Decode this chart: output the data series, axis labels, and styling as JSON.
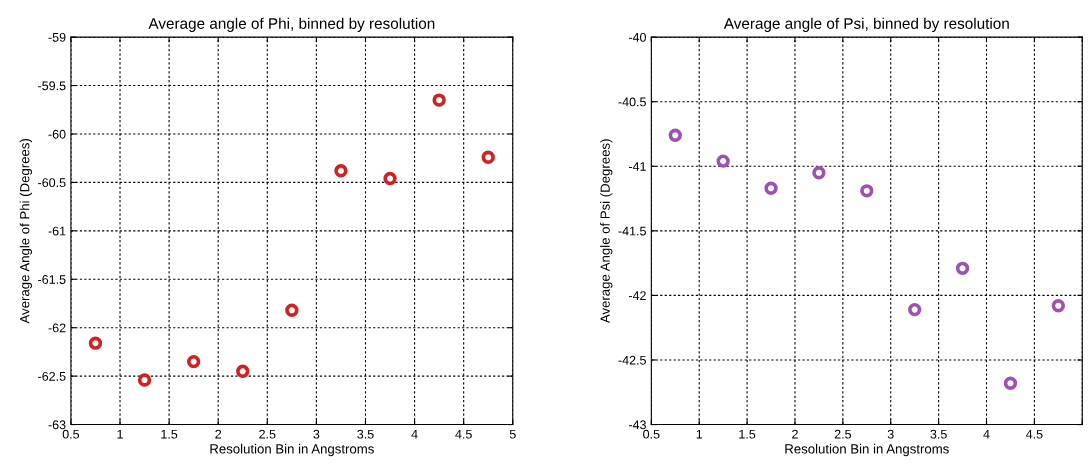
{
  "chart_data": [
    {
      "type": "scatter",
      "title": "Average angle of Phi, binned by resolution",
      "xlabel": "Resolution Bin in Angstroms",
      "ylabel": "Average Angle of Phi (Degrees)",
      "x": [
        0.75,
        1.25,
        1.75,
        2.25,
        2.75,
        3.25,
        3.75,
        4.25,
        4.75
      ],
      "series": [
        {
          "color": "#d42020",
          "values": [
            -62.16,
            -62.54,
            -62.35,
            -62.45,
            -61.82,
            -60.38,
            -60.46,
            -59.65,
            -60.24
          ]
        }
      ],
      "xlim": [
        0.5,
        5
      ],
      "xticks": [
        0.5,
        1,
        1.5,
        2,
        2.5,
        3,
        3.5,
        4,
        4.5,
        5
      ],
      "ylim": [
        -63,
        -59
      ],
      "yticks": [
        -63,
        -62.5,
        -62,
        -61.5,
        -61,
        -60.5,
        -60,
        -59.5,
        -59
      ],
      "grid": true,
      "marker": "circle"
    },
    {
      "type": "scatter",
      "title": "Average angle of Psi, binned by resolution",
      "xlabel": "Resolution Bin in Angstroms",
      "ylabel": "Average Angle of Psi (Degrees)",
      "x": [
        0.75,
        1.25,
        1.75,
        2.25,
        2.75,
        3.25,
        3.75,
        4.25,
        4.75
      ],
      "series": [
        {
          "color": "#a050b0",
          "values": [
            -40.76,
            -40.96,
            -41.17,
            -41.05,
            -41.19,
            -42.11,
            -41.79,
            -42.68,
            -42.08
          ]
        }
      ],
      "xlim": [
        0.5,
        5
      ],
      "xticks": [
        0.5,
        1,
        1.5,
        2,
        2.5,
        3,
        3.5,
        4,
        4.5,
        {
          "value": 5,
          "label": null
        }
      ],
      "ylim": [
        -43,
        -40
      ],
      "yticks": [
        -43,
        -42.5,
        -42,
        -41.5,
        -41,
        -40.5,
        -40
      ],
      "grid": true,
      "marker": "circle"
    }
  ]
}
